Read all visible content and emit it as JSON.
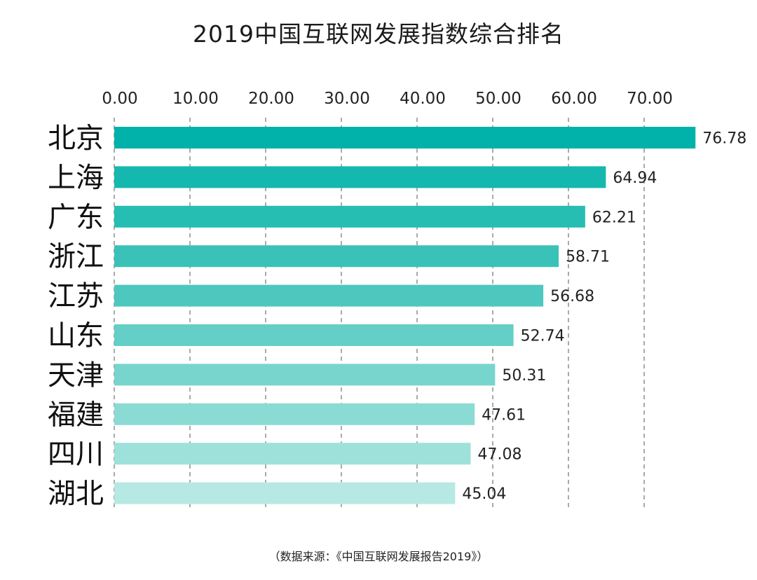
{
  "chart_data": {
    "type": "bar",
    "orientation": "horizontal",
    "title": "2019中国互联网发展指数综合排名",
    "source_note": "（数据来源：《中国互联网发展报告2019》）",
    "xlim": [
      0,
      70
    ],
    "x_ticks": [
      "0.00",
      "10.00",
      "20.00",
      "30.00",
      "40.00",
      "50.00",
      "60.00",
      "70.00"
    ],
    "x_axis_position": "top",
    "grid": "vertical dashed",
    "categories": [
      "北京",
      "上海",
      "广东",
      "浙江",
      "江苏",
      "山东",
      "天津",
      "福建",
      "四川",
      "湖北"
    ],
    "values": [
      76.78,
      64.94,
      62.21,
      58.71,
      56.68,
      52.74,
      50.31,
      47.61,
      47.08,
      45.04
    ],
    "value_labels": [
      "76.78",
      "64.94",
      "62.21",
      "58.71",
      "56.68",
      "52.74",
      "50.31",
      "47.61",
      "47.08",
      "45.04"
    ],
    "colors": [
      "#00b2a9",
      "#14b8ae",
      "#26bdb3",
      "#3ac2b8",
      "#4ec8be",
      "#64cfc6",
      "#78d5cd",
      "#8adbd4",
      "#9de1da",
      "#b6e9e4"
    ]
  }
}
